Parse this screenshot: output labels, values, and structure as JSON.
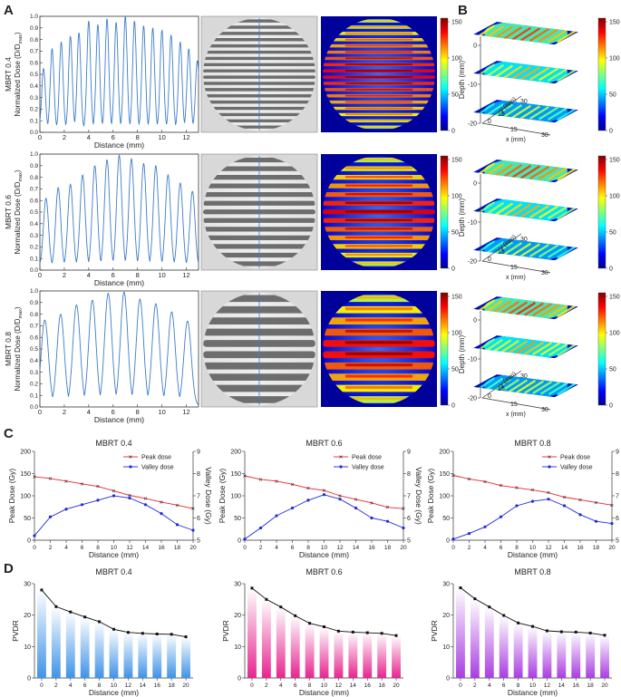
{
  "panel_letters": [
    "A",
    "B",
    "C",
    "D"
  ],
  "colorbar_ticks": [
    0,
    50,
    100,
    150
  ],
  "colors": {
    "profile_line": "#3d7cc9",
    "peak": "#e8262a",
    "valley": "#1f2bd8",
    "pvdr_line": "#111111",
    "bars": [
      "#3f93e6",
      "#e6258f",
      "#a93ee0"
    ]
  },
  "chart_data": [
    {
      "id": "A1",
      "type": "line",
      "row_label": "MBRT 0.4",
      "xlabel": "Distance (mm)",
      "ylabel": "Normalized Dose (D/D",
      "ylabel_sub": "max",
      "ylabel_close": ")",
      "xlim": [
        0,
        13
      ],
      "ylim": [
        0,
        1.0
      ],
      "xticks": [
        0,
        2,
        4,
        6,
        8,
        10,
        12
      ],
      "yticks": [
        "0.0",
        "0.1",
        "0.2",
        "0.3",
        "0.4",
        "0.5",
        "0.6",
        "0.7",
        "0.8",
        "0.9",
        "1.0"
      ],
      "peak_x": [
        0.3,
        1.0,
        1.75,
        2.5,
        3.2,
        4.0,
        4.75,
        5.5,
        6.25,
        7.0,
        7.75,
        8.5,
        9.25,
        10.0,
        10.75,
        11.5,
        12.2,
        12.9
      ],
      "peak_y": [
        0.55,
        0.72,
        0.78,
        0.83,
        0.86,
        0.96,
        0.93,
        0.98,
        0.95,
        1.0,
        0.96,
        0.92,
        0.9,
        0.88,
        0.84,
        0.78,
        0.72,
        0.62
      ],
      "valley_y": 0.03
    },
    {
      "id": "A2",
      "type": "line",
      "row_label": "MBRT 0.6",
      "xlabel": "Distance (mm)",
      "ylabel": "Normalized Dose (D/D",
      "ylabel_sub": "max",
      "ylabel_close": ")",
      "xlim": [
        0,
        13
      ],
      "ylim": [
        0,
        1.0
      ],
      "xticks": [
        0,
        2,
        4,
        6,
        8,
        10,
        12
      ],
      "yticks": [
        "0.0",
        "0.1",
        "0.2",
        "0.3",
        "0.4",
        "0.5",
        "0.6",
        "0.7",
        "0.8",
        "0.9",
        "1.0"
      ],
      "peak_x": [
        0.5,
        1.5,
        2.5,
        3.5,
        4.5,
        5.5,
        6.5,
        7.5,
        8.5,
        9.5,
        10.5,
        11.5,
        12.5
      ],
      "peak_y": [
        0.62,
        0.71,
        0.74,
        0.82,
        0.9,
        0.95,
        0.99,
        0.96,
        0.92,
        0.9,
        0.82,
        0.75,
        0.68
      ],
      "valley_y": 0.02
    },
    {
      "id": "A3",
      "type": "line",
      "row_label": "MBRT 0.8",
      "xlabel": "Distance (mm)",
      "ylabel": "Normalized Dose (D/D",
      "ylabel_sub": "max",
      "ylabel_close": ")",
      "xlim": [
        0,
        13
      ],
      "ylim": [
        0,
        1.0
      ],
      "xticks": [
        0,
        2,
        4,
        6,
        8,
        10,
        12
      ],
      "yticks": [
        "0.0",
        "0.1",
        "0.2",
        "0.3",
        "0.4",
        "0.5",
        "0.6",
        "0.7",
        "0.8",
        "0.9",
        "1.0"
      ],
      "peak_x": [
        0.4,
        1.7,
        3.0,
        4.3,
        5.6,
        6.9,
        8.2,
        9.5,
        10.8,
        12.1
      ],
      "peak_y": [
        0.75,
        0.8,
        0.88,
        0.92,
        0.98,
        0.99,
        0.93,
        0.89,
        0.82,
        0.74
      ],
      "valley_y": 0.01
    },
    {
      "id": "B",
      "type": "heatmap",
      "zlabel": "Depth (mm)",
      "zticks": [
        0,
        -10,
        -20
      ],
      "xlabel": "x (mm)",
      "ylabel": "y (mm)",
      "xticks": [
        15,
        30
      ],
      "yticks": [
        0,
        15,
        30
      ],
      "colorbar_ticks": [
        0,
        50,
        100,
        150
      ]
    },
    {
      "id": "C1",
      "type": "line",
      "title": "MBRT 0.4",
      "xlabel": "Distance (mm)",
      "ylabel": "Peak Dose (Gy)",
      "y2label": "Valley Dose (Gy)",
      "xlim": [
        0,
        20
      ],
      "ylim": [
        0,
        200
      ],
      "y2lim": [
        5,
        9
      ],
      "xticks": [
        0,
        2,
        4,
        6,
        8,
        10,
        12,
        14,
        16,
        18,
        20
      ],
      "yticks": [
        0,
        50,
        100,
        150,
        200
      ],
      "y2ticks": [
        5,
        6,
        7,
        8,
        9
      ],
      "x": [
        0,
        2,
        4,
        6,
        8,
        10,
        12,
        14,
        16,
        18,
        20
      ],
      "series": [
        {
          "name": "Peak dose",
          "axis": "left",
          "values": [
            143,
            139,
            133,
            127,
            121,
            111,
            101,
            94,
            86,
            79,
            71
          ]
        },
        {
          "name": "Valley dose",
          "axis": "right",
          "values": [
            5.2,
            6.05,
            6.4,
            6.6,
            6.8,
            7.0,
            6.9,
            6.6,
            6.2,
            5.7,
            5.45
          ]
        }
      ]
    },
    {
      "id": "C2",
      "type": "line",
      "title": "MBRT 0.6",
      "xlabel": "Distance (mm)",
      "ylabel": "Peak Dose (Gy)",
      "y2label": "Valley Dose (Gy)",
      "xlim": [
        0,
        20
      ],
      "ylim": [
        0,
        200
      ],
      "y2lim": [
        5,
        9
      ],
      "xticks": [
        0,
        2,
        4,
        6,
        8,
        10,
        12,
        14,
        16,
        18,
        20
      ],
      "yticks": [
        0,
        50,
        100,
        150,
        200
      ],
      "y2ticks": [
        5,
        6,
        7,
        8,
        9
      ],
      "x": [
        0,
        2,
        4,
        6,
        8,
        10,
        12,
        14,
        16,
        18,
        20
      ],
      "series": [
        {
          "name": "Peak dose",
          "axis": "left",
          "values": [
            145,
            137,
            133,
            126,
            117,
            112,
            100,
            92,
            84,
            74,
            71
          ]
        },
        {
          "name": "Valley dose",
          "axis": "right",
          "values": [
            5.05,
            5.55,
            6.1,
            6.45,
            6.8,
            7.05,
            6.85,
            6.45,
            6.0,
            5.85,
            5.55
          ]
        }
      ]
    },
    {
      "id": "C3",
      "type": "line",
      "title": "MBRT 0.8",
      "xlabel": "Distance (mm)",
      "ylabel": "Peak Dose (Gy)",
      "y2label": "Valley Dose (Gy)",
      "xlim": [
        0,
        20
      ],
      "ylim": [
        0,
        200
      ],
      "y2lim": [
        5,
        9
      ],
      "xticks": [
        0,
        2,
        4,
        6,
        8,
        10,
        12,
        14,
        16,
        18,
        20
      ],
      "yticks": [
        0,
        50,
        100,
        150,
        200
      ],
      "y2ticks": [
        5,
        6,
        7,
        8,
        9
      ],
      "x": [
        0,
        2,
        4,
        6,
        8,
        10,
        12,
        14,
        16,
        18,
        20
      ],
      "series": [
        {
          "name": "Peak dose",
          "axis": "left",
          "values": [
            146,
            138,
            132,
            123,
            118,
            113,
            107,
            97,
            91,
            85,
            79
          ]
        },
        {
          "name": "Valley dose",
          "axis": "right",
          "values": [
            5.05,
            5.3,
            5.6,
            6.05,
            6.55,
            6.75,
            6.85,
            6.55,
            6.15,
            5.85,
            5.75
          ]
        }
      ]
    },
    {
      "id": "D1",
      "type": "bar",
      "title": "MBRT 0.4",
      "xlabel": "Distance (mm)",
      "ylabel": "PVDR",
      "xlim": [
        0,
        20
      ],
      "ylim": [
        0,
        30
      ],
      "xticks": [
        0,
        2,
        4,
        6,
        8,
        10,
        12,
        14,
        16,
        18,
        20
      ],
      "yticks": [
        0,
        10,
        20,
        30
      ],
      "x": [
        0,
        2,
        4,
        6,
        8,
        10,
        12,
        14,
        16,
        18,
        20
      ],
      "values": [
        28.0,
        22.7,
        21.0,
        19.4,
        17.9,
        15.5,
        14.5,
        14.2,
        14.0,
        13.9,
        13.1
      ]
    },
    {
      "id": "D2",
      "type": "bar",
      "title": "MBRT 0.6",
      "xlabel": "Distance (mm)",
      "ylabel": "PVDR",
      "xlim": [
        0,
        20
      ],
      "ylim": [
        0,
        30
      ],
      "xticks": [
        0,
        2,
        4,
        6,
        8,
        10,
        12,
        14,
        16,
        18,
        20
      ],
      "yticks": [
        0,
        10,
        20,
        30
      ],
      "x": [
        0,
        2,
        4,
        6,
        8,
        10,
        12,
        14,
        16,
        18,
        20
      ],
      "values": [
        28.6,
        25.0,
        22.6,
        19.8,
        17.4,
        16.3,
        14.9,
        14.6,
        14.4,
        14.2,
        13.5
      ]
    },
    {
      "id": "D3",
      "type": "bar",
      "title": "MBRT 0.8",
      "xlabel": "Distance (mm)",
      "ylabel": "PVDR",
      "xlim": [
        0,
        20
      ],
      "ylim": [
        0,
        30
      ],
      "xticks": [
        0,
        2,
        4,
        6,
        8,
        10,
        12,
        14,
        16,
        18,
        20
      ],
      "yticks": [
        0,
        10,
        20,
        30
      ],
      "x": [
        0,
        2,
        4,
        6,
        8,
        10,
        12,
        14,
        16,
        18,
        20
      ],
      "values": [
        28.7,
        25.2,
        22.6,
        19.9,
        17.5,
        16.4,
        15.0,
        14.7,
        14.6,
        14.3,
        13.6
      ]
    }
  ]
}
